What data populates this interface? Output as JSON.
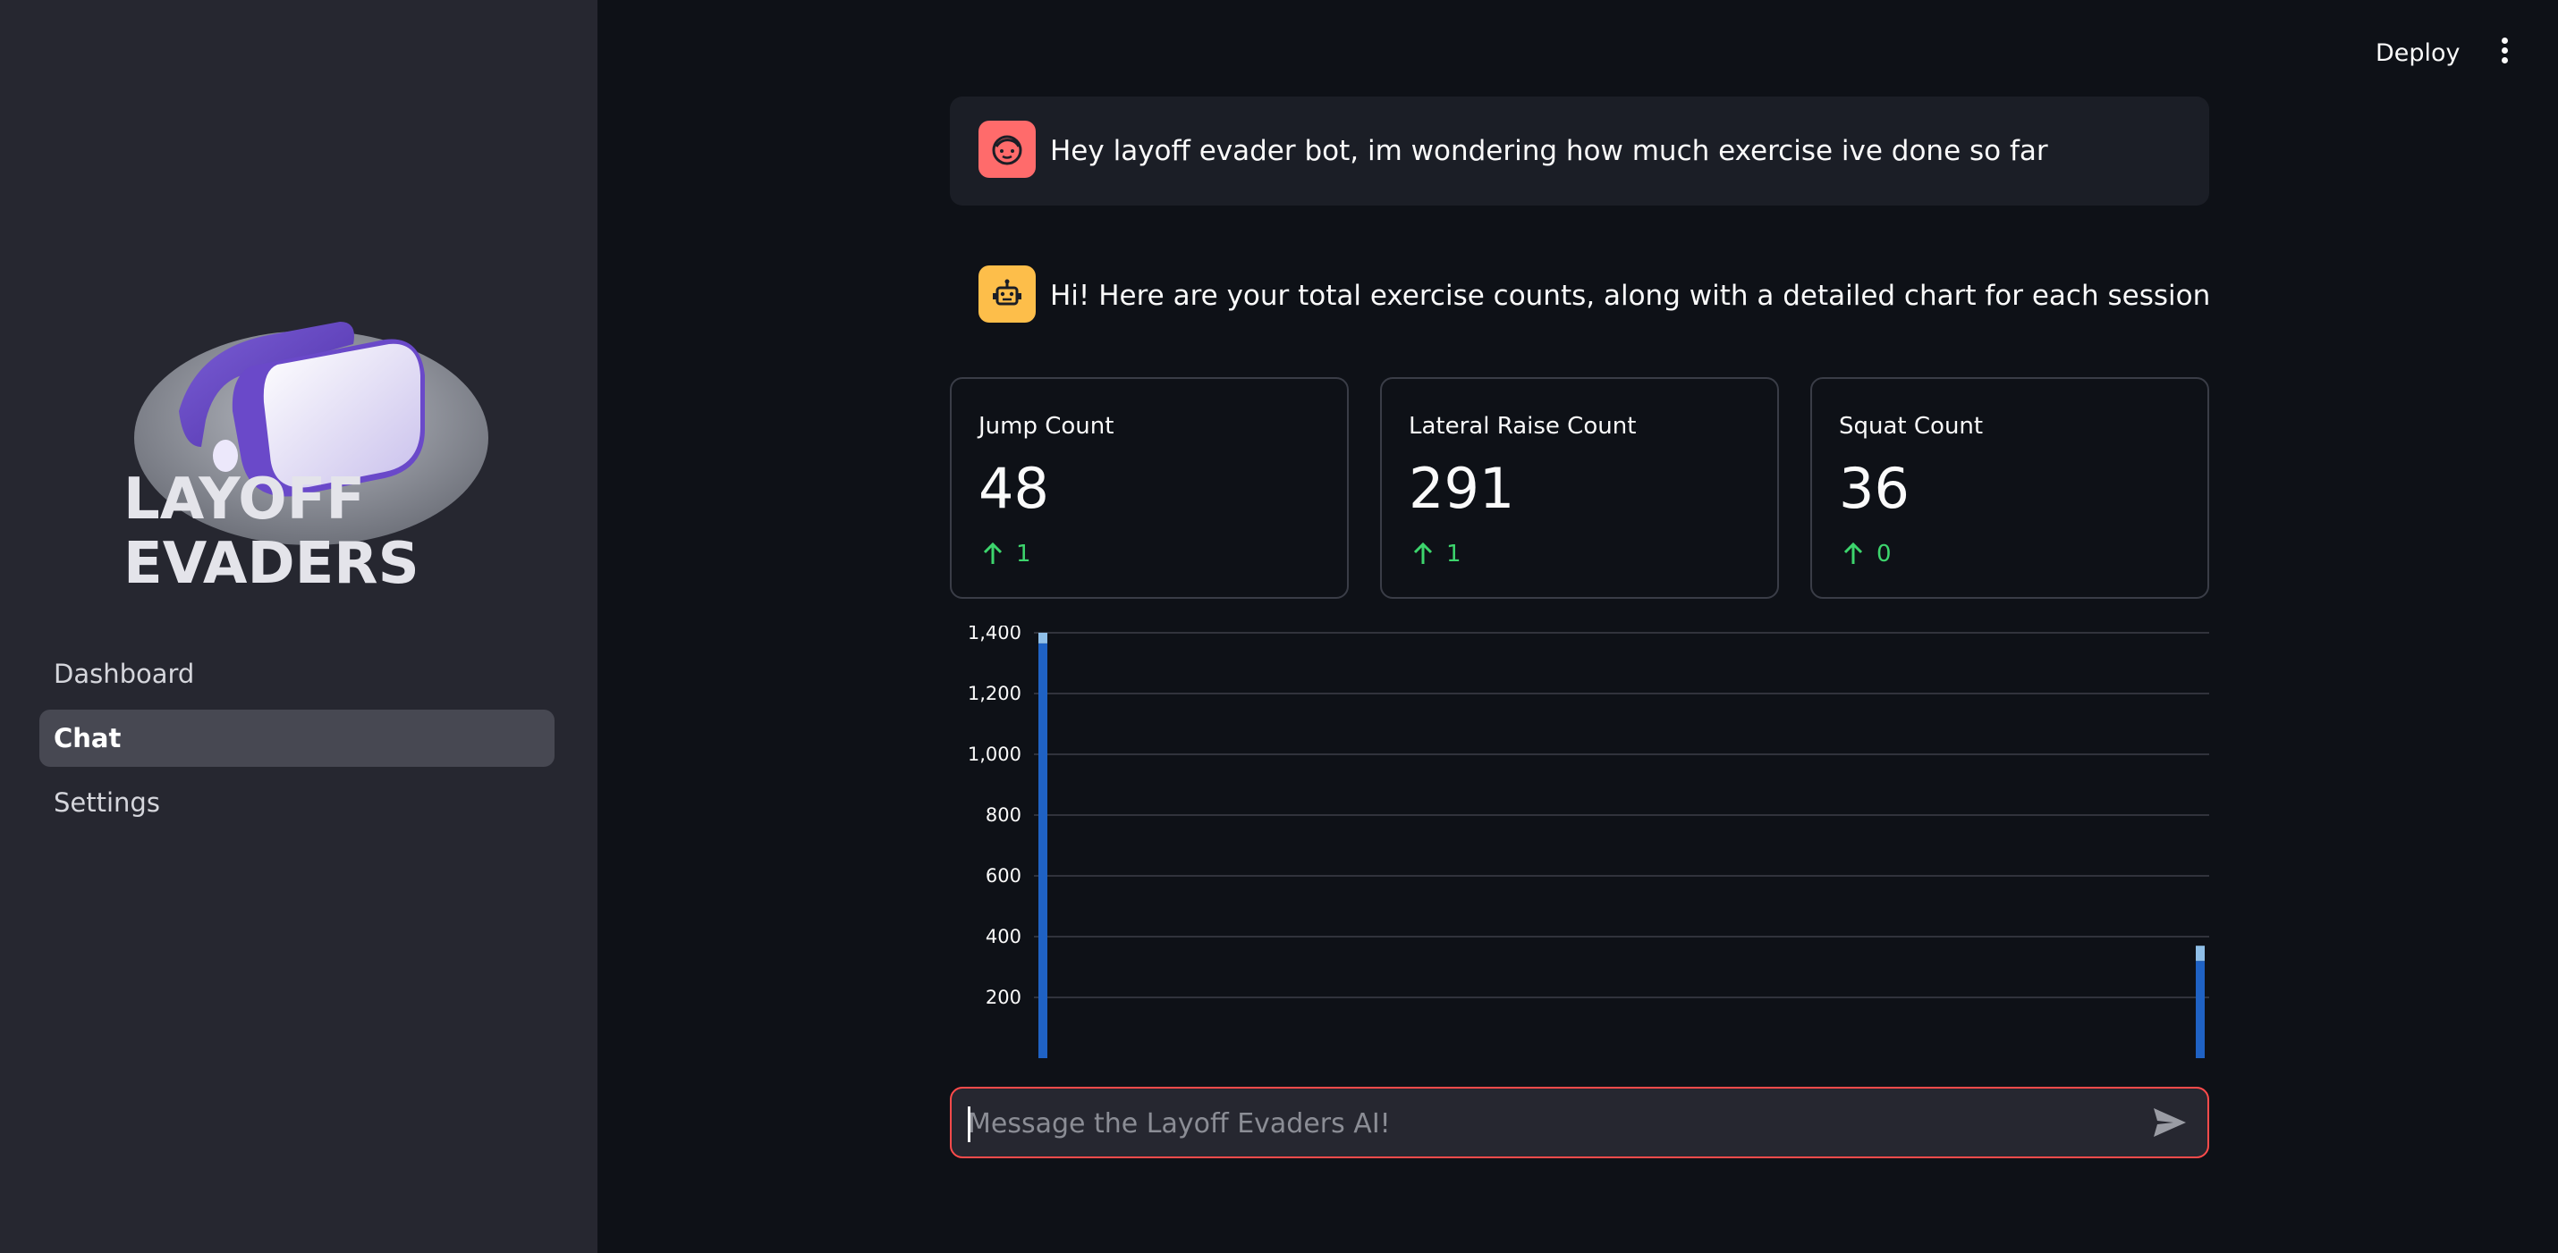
{
  "sidebar": {
    "logo_line1": "LAYOFF",
    "logo_line2": "EVADERS",
    "items": [
      {
        "label": "Dashboard",
        "active": false
      },
      {
        "label": "Chat",
        "active": true
      },
      {
        "label": "Settings",
        "active": false
      }
    ]
  },
  "header": {
    "deploy_label": "Deploy",
    "menu_icon": "kebab-menu-icon"
  },
  "messages": [
    {
      "role": "user",
      "avatar_icon": "user-face-icon",
      "text": "Hey layoff evader bot, im wondering how much exercise ive done so far"
    },
    {
      "role": "assistant",
      "avatar_icon": "robot-icon",
      "text": "Hi! Here are your total exercise counts, along with a detailed chart for each session"
    }
  ],
  "metrics": [
    {
      "label": "Jump Count",
      "value": "48",
      "delta": "1"
    },
    {
      "label": "Lateral Raise Count",
      "value": "291",
      "delta": "1"
    },
    {
      "label": "Squat Count",
      "value": "36",
      "delta": "0"
    }
  ],
  "chart_data": {
    "type": "bar",
    "title": "",
    "xlabel": "",
    "ylabel": "",
    "ylim": [
      0,
      1400
    ],
    "yticks": [
      200,
      400,
      600,
      800,
      1000,
      1200,
      1400
    ],
    "ytick_labels": [
      "200",
      "400",
      "600",
      "800",
      "1,000",
      "1,200",
      "1,400"
    ],
    "stacked": true,
    "grid": true,
    "sessions": [
      {
        "position": 0,
        "segments": [
          {
            "value": 1365,
            "color": "#1f62c4"
          },
          {
            "value": 35,
            "color": "#8fbfe8"
          }
        ]
      },
      {
        "position": 1,
        "segments": [
          {
            "value": 320,
            "color": "#1f62c4"
          },
          {
            "value": 50,
            "color": "#8fbfe8"
          }
        ]
      }
    ]
  },
  "input": {
    "placeholder": "Message the Layoff Evaders AI!",
    "send_icon": "send-icon"
  },
  "colors": {
    "accent": "#ff4b4b",
    "positive": "#3dd56d",
    "bar_primary": "#1f62c4",
    "bar_secondary": "#8fbfe8"
  }
}
